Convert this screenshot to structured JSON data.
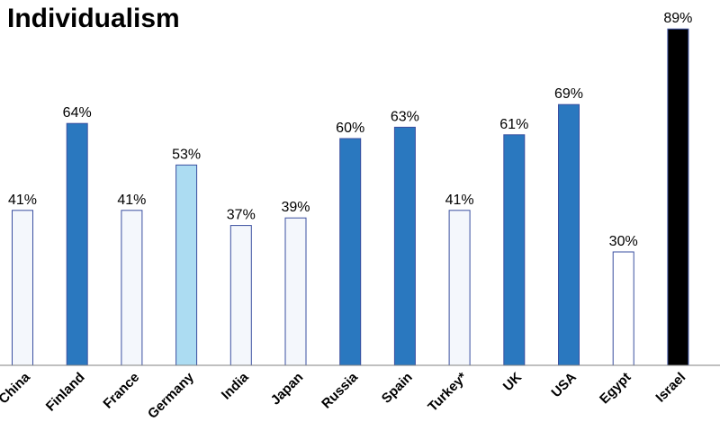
{
  "chart_data": {
    "type": "bar",
    "title": "Individualism",
    "categories": [
      "China",
      "Finland",
      "France",
      "Germany",
      "India",
      "Japan",
      "Russia",
      "Spain",
      "Turkey*",
      "UK",
      "USA",
      "Egypt",
      "Israel"
    ],
    "values": [
      41,
      64,
      41,
      53,
      37,
      39,
      60,
      63,
      41,
      61,
      69,
      30,
      89
    ],
    "value_labels": [
      "41%",
      "64%",
      "41%",
      "53%",
      "37%",
      "39%",
      "60%",
      "63%",
      "41%",
      "61%",
      "69%",
      "30%",
      "89%"
    ],
    "bar_colors": [
      "#f4f7fc",
      "#2a78bf",
      "#f4f7fc",
      "#acdcf2",
      "#f4f7fc",
      "#f4f7fc",
      "#2a78bf",
      "#2a78bf",
      "#f4f7fc",
      "#2a78bf",
      "#2a78bf",
      "#ffffff",
      "#000000"
    ],
    "bar_outline_color": "#3a4fa0",
    "ylim": [
      0,
      100
    ],
    "grid": false,
    "legend": "none"
  }
}
